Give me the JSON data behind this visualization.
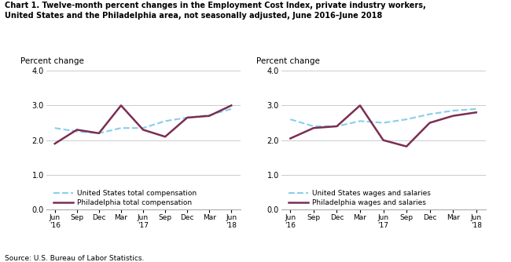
{
  "title_line1": "Chart 1. Twelve-month percent changes in the Employment Cost Index, private industry workers,",
  "title_line2": "United States and the Philadelphia area, not seasonally adjusted, June 2016–June 2018",
  "source": "Source: U.S. Bureau of Labor Statistics.",
  "ylabel": "Percent change",
  "x_labels": [
    "Jun\n'16",
    "Sep",
    "Dec",
    "Mar",
    "Jun\n'17",
    "Sep",
    "Dec",
    "Mar",
    "Jun\n'18"
  ],
  "x_positions": [
    0,
    1,
    2,
    3,
    4,
    5,
    6,
    7,
    8
  ],
  "chart1": {
    "us_total_comp": [
      2.35,
      2.25,
      2.2,
      2.35,
      2.35,
      2.55,
      2.65,
      2.72,
      2.9
    ],
    "philly_total_comp": [
      1.9,
      2.3,
      2.2,
      3.0,
      2.3,
      2.1,
      2.65,
      2.7,
      3.0
    ],
    "us_label": "United States total compensation",
    "philly_label": "Philadelphia total compensation"
  },
  "chart2": {
    "us_wages": [
      2.6,
      2.4,
      2.4,
      2.55,
      2.5,
      2.6,
      2.75,
      2.85,
      2.9
    ],
    "philly_wages": [
      2.05,
      2.35,
      2.4,
      3.0,
      2.0,
      1.82,
      2.5,
      2.7,
      2.8
    ],
    "us_label": "United States wages and salaries",
    "philly_label": "Philadelphia wages and salaries"
  },
  "us_color": "#87CEEB",
  "philly_color": "#7B2D52",
  "us_linewidth": 1.5,
  "philly_linewidth": 1.8,
  "ylim": [
    0.0,
    4.0
  ],
  "yticks": [
    0.0,
    1.0,
    2.0,
    3.0,
    4.0
  ],
  "background_color": "#ffffff",
  "grid_color": "#cccccc"
}
